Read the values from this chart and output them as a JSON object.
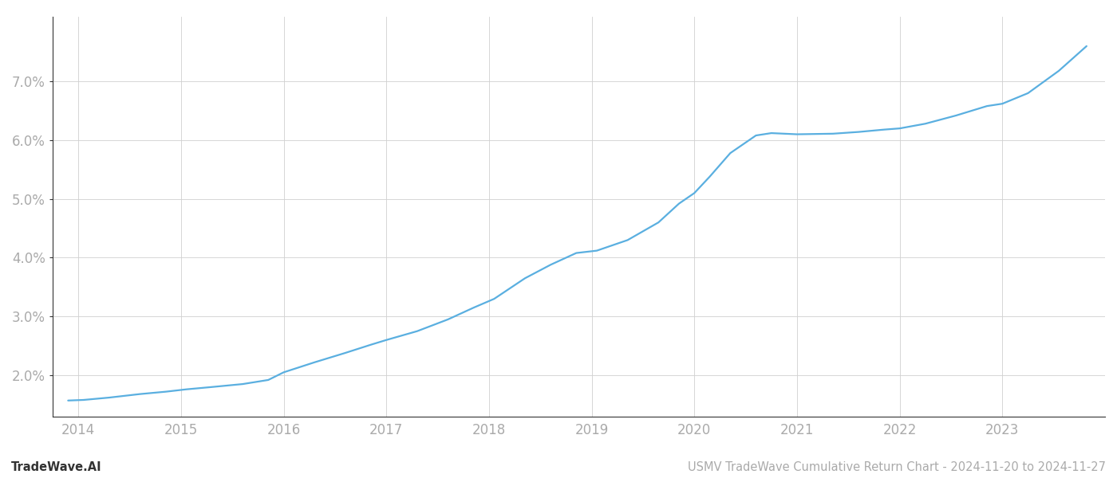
{
  "title": "",
  "footer_left": "TradeWave.AI",
  "footer_right": "USMV TradeWave Cumulative Return Chart - 2024-11-20 to 2024-11-27",
  "line_color": "#5aafe0",
  "background_color": "#ffffff",
  "grid_color": "#d0d0d0",
  "x_years": [
    2014,
    2015,
    2016,
    2017,
    2018,
    2019,
    2020,
    2021,
    2022,
    2023
  ],
  "data_x": [
    2013.9,
    2014.05,
    2014.3,
    2014.6,
    2014.85,
    2015.05,
    2015.3,
    2015.6,
    2015.85,
    2016.0,
    2016.3,
    2016.6,
    2016.85,
    2017.0,
    2017.3,
    2017.6,
    2017.85,
    2018.05,
    2018.35,
    2018.6,
    2018.85,
    2019.05,
    2019.35,
    2019.65,
    2019.85,
    2020.0,
    2020.15,
    2020.35,
    2020.6,
    2020.75,
    2021.0,
    2021.35,
    2021.6,
    2021.85,
    2022.0,
    2022.25,
    2022.55,
    2022.85,
    2023.0,
    2023.25,
    2023.55,
    2023.82
  ],
  "data_y": [
    1.57,
    1.58,
    1.62,
    1.68,
    1.72,
    1.76,
    1.8,
    1.85,
    1.92,
    2.05,
    2.22,
    2.38,
    2.52,
    2.6,
    2.75,
    2.95,
    3.15,
    3.3,
    3.65,
    3.88,
    4.08,
    4.12,
    4.3,
    4.6,
    4.92,
    5.1,
    5.38,
    5.78,
    6.08,
    6.12,
    6.1,
    6.11,
    6.14,
    6.18,
    6.2,
    6.28,
    6.42,
    6.58,
    6.62,
    6.8,
    7.18,
    7.6
  ],
  "ylim": [
    1.3,
    8.1
  ],
  "yticks": [
    2.0,
    3.0,
    4.0,
    5.0,
    6.0,
    7.0
  ],
  "xlim": [
    2013.75,
    2024.0
  ],
  "line_width": 1.6,
  "tick_label_color": "#aaaaaa",
  "spine_color": "#333333",
  "footer_fontsize": 10.5,
  "tick_fontsize": 12
}
